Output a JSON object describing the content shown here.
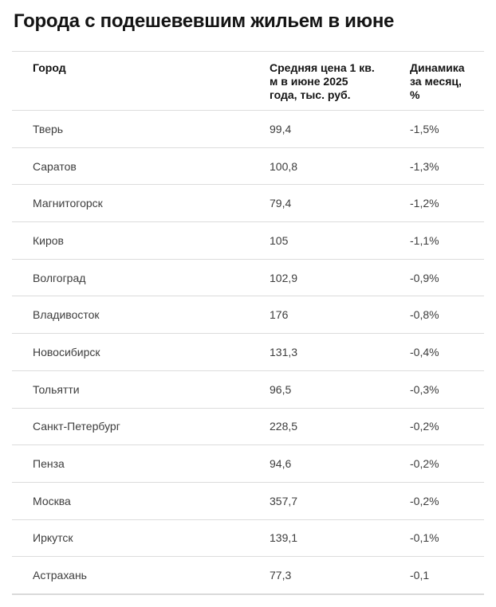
{
  "page": {
    "title": "Города с подешевевшим жильем в июне"
  },
  "colors": {
    "background": "#ffffff",
    "title_text": "#141414",
    "header_text": "#141414",
    "body_text": "#3d3d3d",
    "divider": "#dcdcdc"
  },
  "chart_data": {
    "type": "table",
    "title": "Города с подешевевшим жильем в июне",
    "columns": [
      "Город",
      "Средняя цена 1 кв.\nм в июне 2025\nгода, тыс. руб.",
      "Динамика\nза месяц,\n%"
    ],
    "rows": [
      [
        "Тверь",
        "99,4",
        "-1,5%"
      ],
      [
        "Саратов",
        "100,8",
        "-1,3%"
      ],
      [
        "Магнитогорск",
        "79,4",
        "-1,2%"
      ],
      [
        "Киров",
        "105",
        "-1,1%"
      ],
      [
        "Волгоград",
        "102,9",
        "-0,9%"
      ],
      [
        "Владивосток",
        "176",
        "-0,8%"
      ],
      [
        "Новосибирск",
        "131,3",
        "-0,4%"
      ],
      [
        "Тольятти",
        "96,5",
        "-0,3%"
      ],
      [
        "Санкт-Петербург",
        "228,5",
        "-0,2%"
      ],
      [
        "Пенза",
        "94,6",
        "-0,2%"
      ],
      [
        "Москва",
        "357,7",
        "-0,2%"
      ],
      [
        "Иркутск",
        "139,1",
        "-0,1%"
      ],
      [
        "Астрахань",
        "77,3",
        "-0,1"
      ]
    ]
  }
}
